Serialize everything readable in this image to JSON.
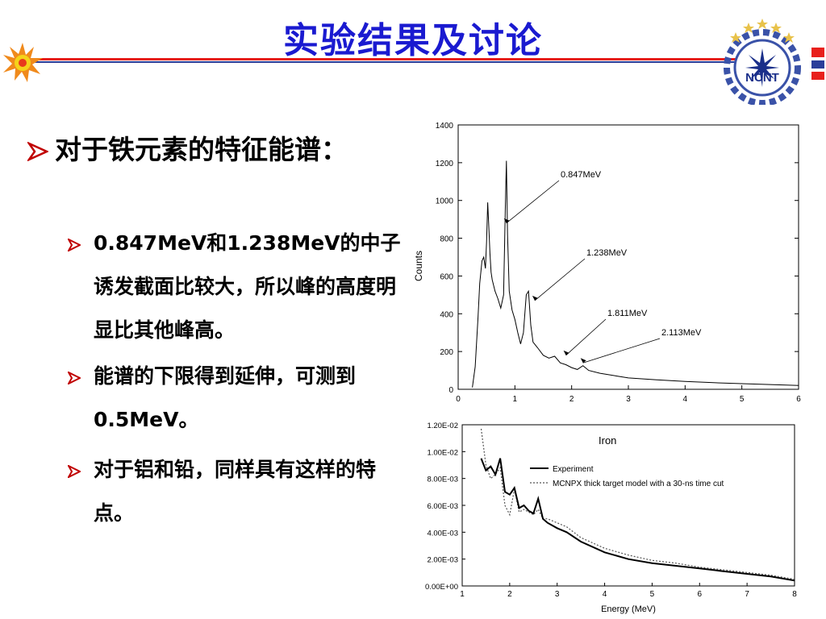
{
  "slide": {
    "title": "实验结果及讨论",
    "logo_text": "NCNT"
  },
  "bullets": {
    "main": "对于铁元素的特征能谱：",
    "sub": [
      "0.847MeV和1.238MeV的中子诱发截面比较大，所以峰的高度明显比其他峰高。",
      "能谱的下限得到延伸，可测到0.5MeV。",
      "对于铝和铅，同样具有这样的特点。"
    ]
  },
  "colors": {
    "title": "#1a1ad0",
    "rule_red": "#e8201c",
    "rule_blue": "#2a3e9a",
    "bullet_arrow": "#c00000"
  },
  "chart_data": [
    {
      "type": "line",
      "ylabel": "Counts",
      "xlabel": "",
      "xlim": [
        0,
        6
      ],
      "ylim": [
        0,
        1400
      ],
      "x_ticks": [
        0,
        1,
        2,
        3,
        4,
        5,
        6
      ],
      "y_ticks": [
        0,
        200,
        400,
        600,
        800,
        1000,
        1200,
        1400
      ],
      "grid": false,
      "series": [
        {
          "x": [
            0.25,
            0.3,
            0.35,
            0.38,
            0.42,
            0.45,
            0.48,
            0.5,
            0.52,
            0.54,
            0.56,
            0.58,
            0.6,
            0.65,
            0.7,
            0.75,
            0.8,
            0.83,
            0.85,
            0.87,
            0.9,
            0.95,
            1.0,
            1.05,
            1.1,
            1.15,
            1.2,
            1.24,
            1.28,
            1.32,
            1.4,
            1.5,
            1.6,
            1.7,
            1.8,
            1.9,
            2.0,
            2.1,
            2.2,
            2.3,
            2.5,
            2.8,
            3.0,
            3.5,
            4.0,
            4.5,
            5.0,
            5.5,
            6.0
          ],
          "y": [
            10,
            120,
            380,
            560,
            680,
            700,
            640,
            780,
            990,
            860,
            720,
            620,
            580,
            520,
            480,
            430,
            500,
            950,
            1210,
            820,
            520,
            420,
            370,
            300,
            240,
            300,
            500,
            520,
            340,
            250,
            220,
            180,
            165,
            175,
            140,
            130,
            115,
            105,
            125,
            100,
            85,
            70,
            60,
            50,
            42,
            35,
            30,
            25,
            20
          ]
        }
      ],
      "annotations": [
        {
          "label": "0.847MeV",
          "x": 0.85,
          "y": 880
        },
        {
          "label": "1.238MeV",
          "x": 1.35,
          "y": 470
        },
        {
          "label": "1.811MeV",
          "x": 1.9,
          "y": 180
        },
        {
          "label": "2.113MeV",
          "x": 2.2,
          "y": 140
        }
      ]
    },
    {
      "type": "line",
      "title": "Iron",
      "xlabel": "Energy (MeV)",
      "ylabel": "",
      "xlim": [
        1,
        8
      ],
      "ylim": [
        0,
        0.012
      ],
      "x_ticks": [
        1,
        2,
        3,
        4,
        5,
        6,
        7,
        8
      ],
      "y_ticks": [
        "0.00E+00",
        "2.00E-03",
        "4.00E-03",
        "6.00E-03",
        "8.00E-03",
        "1.00E-02",
        "1.20E-02"
      ],
      "legend": "top-right",
      "series": [
        {
          "name": "Experiment",
          "x": [
            1.4,
            1.5,
            1.6,
            1.7,
            1.8,
            1.9,
            2.0,
            2.1,
            2.2,
            2.3,
            2.4,
            2.5,
            2.6,
            2.7,
            2.8,
            3.0,
            3.2,
            3.5,
            4.0,
            4.5,
            5.0,
            5.5,
            6.0,
            6.5,
            7.0,
            7.5,
            8.0
          ],
          "y": [
            0.0095,
            0.0086,
            0.0089,
            0.0083,
            0.0095,
            0.007,
            0.0068,
            0.0073,
            0.0058,
            0.006,
            0.0056,
            0.0054,
            0.0065,
            0.005,
            0.0047,
            0.0043,
            0.004,
            0.0033,
            0.0025,
            0.002,
            0.0017,
            0.0015,
            0.0013,
            0.0011,
            0.0009,
            0.0007,
            0.0004
          ]
        },
        {
          "name": "MCNPX thick target model with a 30-ns time cut",
          "x": [
            1.4,
            1.5,
            1.6,
            1.7,
            1.8,
            1.9,
            2.0,
            2.1,
            2.2,
            2.3,
            2.4,
            2.5,
            2.6,
            2.7,
            2.8,
            3.0,
            3.2,
            3.5,
            4.0,
            4.5,
            5.0,
            5.5,
            6.0,
            6.5,
            7.0,
            7.5,
            8.0
          ],
          "y": [
            0.0117,
            0.009,
            0.008,
            0.0083,
            0.0088,
            0.006,
            0.0053,
            0.0072,
            0.0055,
            0.0057,
            0.0055,
            0.0053,
            0.0057,
            0.005,
            0.005,
            0.0047,
            0.0044,
            0.0036,
            0.0028,
            0.0023,
            0.0019,
            0.0017,
            0.0014,
            0.0012,
            0.001,
            0.0008,
            0.0005
          ]
        }
      ]
    }
  ]
}
